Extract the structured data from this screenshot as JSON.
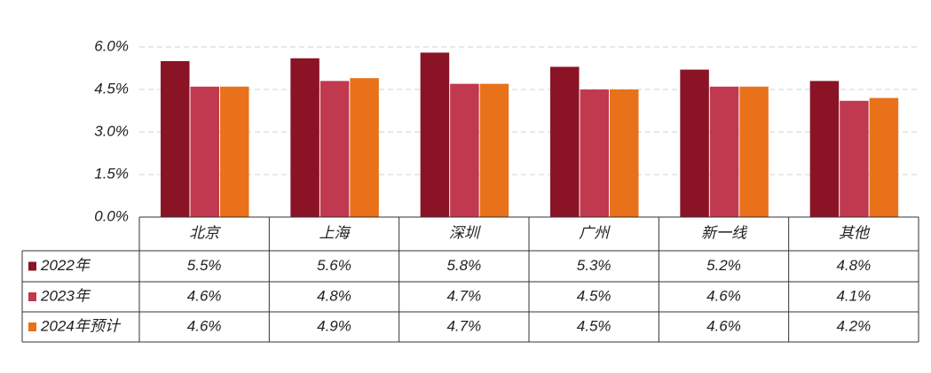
{
  "chart_data": {
    "type": "bar",
    "categories": [
      "北京",
      "上海",
      "深圳",
      "广州",
      "新一线",
      "其他"
    ],
    "series": [
      {
        "name": "2022年",
        "color": "#8b1326",
        "values": [
          5.5,
          5.6,
          5.8,
          5.3,
          5.2,
          4.8
        ],
        "value_labels": [
          "5.5%",
          "5.6%",
          "5.8%",
          "5.3%",
          "5.2%",
          "4.8%"
        ]
      },
      {
        "name": "2023年",
        "color": "#c0394e",
        "values": [
          4.6,
          4.8,
          4.7,
          4.5,
          4.6,
          4.1
        ],
        "value_labels": [
          "4.6%",
          "4.8%",
          "4.7%",
          "4.5%",
          "4.6%",
          "4.1%"
        ]
      },
      {
        "name": "2024年预计",
        "color": "#e8711a",
        "values": [
          4.6,
          4.9,
          4.7,
          4.5,
          4.6,
          4.2
        ],
        "value_labels": [
          "4.6%",
          "4.9%",
          "4.7%",
          "4.5%",
          "4.6%",
          "4.2%"
        ]
      }
    ],
    "ylim": [
      0,
      6
    ],
    "yticks": [
      {
        "value": 0,
        "label": "0.0%"
      },
      {
        "value": 1.5,
        "label": "1.5%"
      },
      {
        "value": 3,
        "label": "3.0%"
      },
      {
        "value": 4.5,
        "label": "4.5%"
      },
      {
        "value": 6,
        "label": "6.0%"
      }
    ],
    "grid": true
  }
}
